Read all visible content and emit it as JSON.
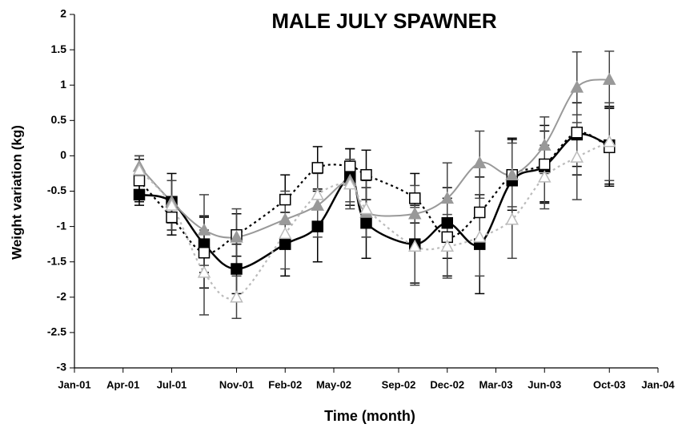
{
  "chart_data": {
    "type": "line",
    "title": "MALE JULY SPAWNER",
    "x_label": "Time (month)",
    "y_label": "Weight variation (kg)",
    "x": [
      "2001-05",
      "2001-07",
      "2001-09",
      "2001-11",
      "2002-02",
      "2002-04",
      "2002-06",
      "2002-07",
      "2002-10",
      "2002-12",
      "2003-02",
      "2003-04",
      "2003-06",
      "2003-08",
      "2003-10"
    ],
    "series": [
      {
        "color": "#000000",
        "marker": "square-filled",
        "line": "solid",
        "values": [
          -0.55,
          -0.65,
          -1.25,
          -1.6,
          -1.25,
          -1.0,
          -0.3,
          -0.95,
          -1.25,
          -0.95,
          -1.25,
          -0.35,
          -0.15,
          0.3,
          0.15
        ],
        "errors": [
          0.15,
          0.4,
          0.4,
          0.35,
          0.45,
          0.5,
          0.4,
          0.5,
          0.55,
          0.5,
          0.7,
          0.6,
          0.5,
          0.45,
          0.55
        ]
      },
      {
        "color": "#000000",
        "marker": "square-open",
        "line": "dotted",
        "values": [
          -0.35,
          -0.87,
          -1.37,
          -1.12,
          -0.62,
          -0.17,
          -0.15,
          -0.27,
          -0.6,
          -1.15,
          -0.8,
          -0.27,
          -0.12,
          0.33,
          0.12
        ],
        "errors": [
          0.3,
          0.25,
          0.5,
          0.3,
          0.35,
          0.3,
          0.25,
          0.35,
          0.35,
          0.55,
          0.5,
          0.5,
          0.55,
          0.6,
          0.55
        ]
      },
      {
        "color": "#999999",
        "marker": "triangle-filled",
        "line": "solid",
        "values": [
          -0.15,
          -0.65,
          -1.05,
          -1.15,
          -0.9,
          -0.7,
          -0.35,
          -0.8,
          -0.82,
          -0.6,
          -0.1,
          -0.27,
          0.15,
          0.97,
          1.08
        ],
        "errors": [
          0.15,
          0.3,
          0.5,
          0.4,
          0.4,
          0.45,
          0.3,
          0.35,
          0.4,
          0.5,
          0.45,
          0.45,
          0.4,
          0.5,
          0.4
        ]
      },
      {
        "color": "#bbbbbb",
        "marker": "triangle-open",
        "line": "dotted",
        "values": [
          -0.2,
          -0.7,
          -1.65,
          -2.0,
          -1.1,
          -0.55,
          -0.4,
          -0.75,
          -1.28,
          -1.28,
          -1.15,
          -0.9,
          -0.3,
          -0.02,
          0.2
        ],
        "errors": [
          0.2,
          0.35,
          0.6,
          0.3,
          0.5,
          0.45,
          0.35,
          0.4,
          0.55,
          0.45,
          0.55,
          0.55,
          0.45,
          0.6,
          0.55
        ]
      }
    ],
    "xlim": [
      "2001-01",
      "2004-01"
    ],
    "xticks": [
      {
        "value": "2001-01",
        "label": "Jan-01"
      },
      {
        "value": "2001-04",
        "label": "Apr-01"
      },
      {
        "value": "2001-07",
        "label": "Jul-01"
      },
      {
        "value": "2001-11",
        "label": "Nov-01"
      },
      {
        "value": "2002-02",
        "label": "Feb-02"
      },
      {
        "value": "2002-05",
        "label": "May-02"
      },
      {
        "value": "2002-09",
        "label": "Sep-02"
      },
      {
        "value": "2002-12",
        "label": "Dec-02"
      },
      {
        "value": "2003-03",
        "label": "Mar-03"
      },
      {
        "value": "2003-06",
        "label": "Jun-03"
      },
      {
        "value": "2003-10",
        "label": "Oct-03"
      },
      {
        "value": "2004-01",
        "label": "Jan-04"
      }
    ],
    "ylim": [
      -3,
      2
    ],
    "yticks": [
      -3,
      -2.5,
      -2,
      -1.5,
      -1,
      -0.5,
      0,
      0.5,
      1,
      1.5,
      2
    ],
    "grid": false
  }
}
